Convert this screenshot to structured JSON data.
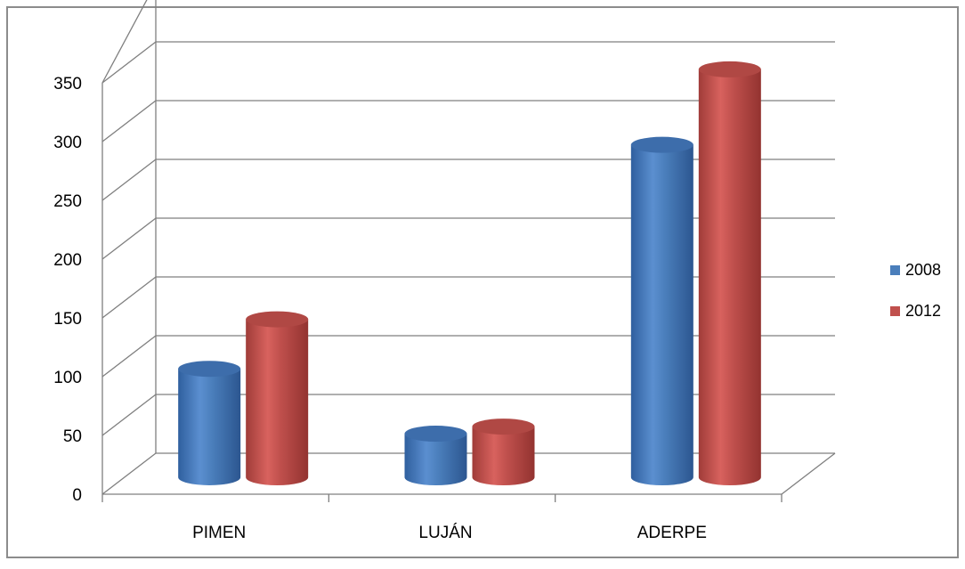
{
  "chart_data": {
    "type": "bar",
    "style": "3d-cylinder",
    "categories": [
      "PIMEN",
      "LUJÁN",
      "ADERPE"
    ],
    "series": [
      {
        "name": "2008",
        "color": "#4a7ebb",
        "values": [
          92,
          37,
          282
        ]
      },
      {
        "name": "2012",
        "color": "#c0504d",
        "values": [
          134,
          43,
          346
        ]
      }
    ],
    "y_ticks": [
      "0",
      "50",
      "100",
      "150",
      "200",
      "250",
      "300",
      "350"
    ],
    "ylim": [
      0,
      350
    ],
    "grid": true,
    "legend_position": "right"
  }
}
